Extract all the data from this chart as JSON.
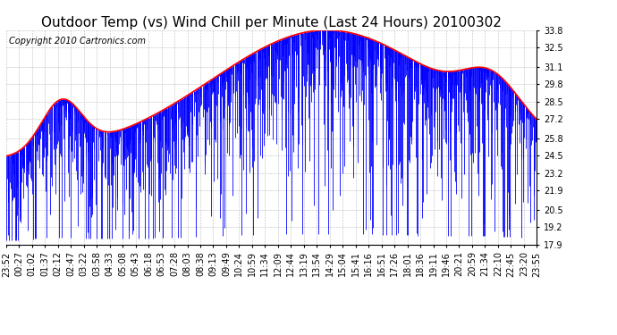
{
  "title": "Outdoor Temp (vs) Wind Chill per Minute (Last 24 Hours) 20100302",
  "copyright": "Copyright 2010 Cartronics.com",
  "yticks": [
    17.9,
    19.2,
    20.5,
    21.9,
    23.2,
    24.5,
    25.8,
    27.2,
    28.5,
    29.8,
    31.1,
    32.5,
    33.8
  ],
  "ymin": 17.9,
  "ymax": 33.8,
  "background_color": "#ffffff",
  "plot_bg_color": "#ffffff",
  "grid_color": "#bbbbbb",
  "title_fontsize": 11,
  "copyright_fontsize": 7,
  "tick_fontsize": 7,
  "line_color_red": "#ff0000",
  "line_color_blue": "#0000ff",
  "xtick_labels": [
    "23:52",
    "00:27",
    "01:02",
    "01:37",
    "02:12",
    "02:47",
    "03:22",
    "03:58",
    "04:33",
    "05:08",
    "05:43",
    "06:18",
    "06:53",
    "07:28",
    "08:03",
    "08:38",
    "09:13",
    "09:49",
    "10:24",
    "10:59",
    "11:34",
    "12:09",
    "12:44",
    "13:19",
    "13:54",
    "14:29",
    "15:04",
    "15:41",
    "16:16",
    "16:51",
    "17:26",
    "18:01",
    "18:36",
    "19:11",
    "19:46",
    "20:21",
    "20:59",
    "21:34",
    "22:10",
    "22:45",
    "23:20",
    "23:55"
  ]
}
